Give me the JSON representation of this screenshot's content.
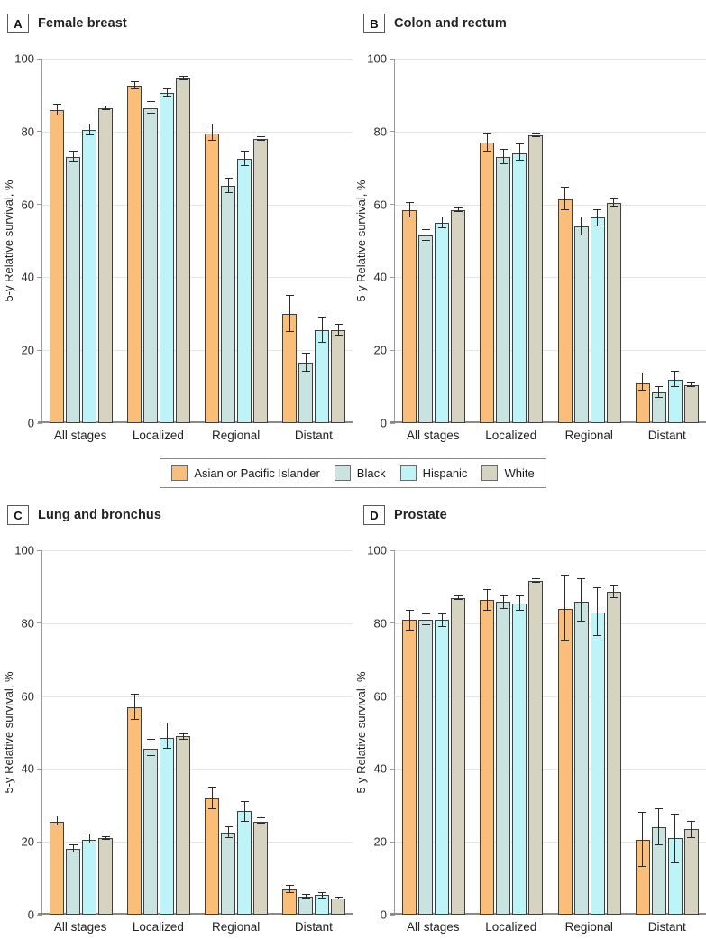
{
  "figure": {
    "y_axis_label": "5-y Relative survival, %",
    "y_ticks": [
      0,
      20,
      40,
      60,
      80,
      100
    ],
    "x_categories": [
      "All stages",
      "Localized",
      "Regional",
      "Distant"
    ],
    "colors": {
      "asian_or_pacific_islander": "#FBBE78",
      "black": "#C9E4E0",
      "hispanic": "#BDF4F7",
      "white": "#D6D4C0",
      "bar_border": "#3f3f3f",
      "error_bar": "#2a2a2a",
      "gridline": "#e4e4e4",
      "axis": "#9b9b9b"
    }
  },
  "legend": {
    "items": [
      {
        "label": "Asian or Pacific Islander",
        "color": "#FBBE78"
      },
      {
        "label": "Black",
        "color": "#C9E4E0"
      },
      {
        "label": "Hispanic",
        "color": "#BDF4F7"
      },
      {
        "label": "White",
        "color": "#D6D4C0"
      }
    ]
  },
  "chart_data": [
    {
      "type": "bar",
      "panel_label": "A",
      "title": "Female breast",
      "ylabel": "5-y Relative survival, %",
      "ylim": [
        0,
        100
      ],
      "grid": true,
      "categories": [
        "All stages",
        "Localized",
        "Regional",
        "Distant"
      ],
      "series": [
        {
          "name": "Asian or Pacific Islander",
          "color": "#FBBE78",
          "values": [
            86,
            92.5,
            79.5,
            30
          ],
          "err_lo": [
            84.5,
            91.5,
            77.5,
            25
          ],
          "err_hi": [
            87.5,
            93.5,
            82,
            35
          ]
        },
        {
          "name": "Black",
          "color": "#C9E4E0",
          "values": [
            73,
            86.5,
            65,
            16.5
          ],
          "err_lo": [
            71.5,
            85,
            63,
            14
          ],
          "err_hi": [
            74.5,
            88,
            67,
            19
          ]
        },
        {
          "name": "Hispanic",
          "color": "#BDF4F7",
          "values": [
            80.5,
            90.5,
            72.5,
            25.5
          ],
          "err_lo": [
            79,
            89.5,
            70.5,
            22
          ],
          "err_hi": [
            82,
            91.5,
            74.5,
            29
          ]
        },
        {
          "name": "White",
          "color": "#D6D4C0",
          "values": [
            86.5,
            94.5,
            78,
            25.5
          ],
          "err_lo": [
            86,
            94,
            77.5,
            24
          ],
          "err_hi": [
            87,
            95,
            78.5,
            27
          ]
        }
      ]
    },
    {
      "type": "bar",
      "panel_label": "B",
      "title": "Colon and rectum",
      "ylabel": "5-y Relative survival, %",
      "ylim": [
        0,
        100
      ],
      "grid": true,
      "categories": [
        "All stages",
        "Localized",
        "Regional",
        "Distant"
      ],
      "series": [
        {
          "name": "Asian or Pacific Islander",
          "color": "#FBBE78",
          "values": [
            58.5,
            77,
            61.5,
            11
          ],
          "err_lo": [
            56.5,
            74.5,
            58.5,
            9
          ],
          "err_hi": [
            60.5,
            79.5,
            64.5,
            13.5
          ]
        },
        {
          "name": "Black",
          "color": "#C9E4E0",
          "values": [
            51.5,
            73,
            54,
            8.5
          ],
          "err_lo": [
            50,
            71,
            51.5,
            7
          ],
          "err_hi": [
            53,
            75,
            56.5,
            10
          ]
        },
        {
          "name": "Hispanic",
          "color": "#BDF4F7",
          "values": [
            55,
            74,
            56.5,
            12
          ],
          "err_lo": [
            53.5,
            72,
            54,
            10
          ],
          "err_hi": [
            56.5,
            76.5,
            58.5,
            14
          ]
        },
        {
          "name": "White",
          "color": "#D6D4C0",
          "values": [
            58.5,
            79,
            60.5,
            10.5
          ],
          "err_lo": [
            58,
            78.5,
            59.5,
            10
          ],
          "err_hi": [
            59,
            79.5,
            61.5,
            11
          ]
        }
      ]
    },
    {
      "type": "bar",
      "panel_label": "C",
      "title": "Lung and bronchus",
      "ylabel": "5-y Relative survival, %",
      "ylim": [
        0,
        100
      ],
      "grid": true,
      "categories": [
        "All stages",
        "Localized",
        "Regional",
        "Distant"
      ],
      "series": [
        {
          "name": "Asian or Pacific Islander",
          "color": "#FBBE78",
          "values": [
            25.5,
            57,
            32,
            7
          ],
          "err_lo": [
            24.5,
            53.5,
            29,
            6
          ],
          "err_hi": [
            27,
            60.5,
            35,
            8
          ]
        },
        {
          "name": "Black",
          "color": "#C9E4E0",
          "values": [
            18,
            45.5,
            22.5,
            5
          ],
          "err_lo": [
            17,
            43.5,
            21,
            4.5
          ],
          "err_hi": [
            19,
            48,
            24,
            5.5
          ]
        },
        {
          "name": "Hispanic",
          "color": "#BDF4F7",
          "values": [
            20.5,
            48.5,
            28.5,
            5.5
          ],
          "err_lo": [
            19.5,
            45.5,
            25.5,
            4.5
          ],
          "err_hi": [
            22,
            52.5,
            31,
            6
          ]
        },
        {
          "name": "White",
          "color": "#D6D4C0",
          "values": [
            21,
            49,
            25.5,
            4.5
          ],
          "err_lo": [
            20.5,
            48,
            25,
            4.3
          ],
          "err_hi": [
            21.3,
            49.5,
            26.5,
            4.7
          ]
        }
      ]
    },
    {
      "type": "bar",
      "panel_label": "D",
      "title": "Prostate",
      "ylabel": "5-y Relative survival, %",
      "ylim": [
        0,
        100
      ],
      "grid": true,
      "categories": [
        "All stages",
        "Localized",
        "Regional",
        "Distant"
      ],
      "series": [
        {
          "name": "Asian or Pacific Islander",
          "color": "#FBBE78",
          "values": [
            81,
            86.5,
            84,
            20.5
          ],
          "err_lo": [
            78,
            83.5,
            75,
            13
          ],
          "err_hi": [
            83.5,
            89,
            93,
            28
          ]
        },
        {
          "name": "Black",
          "color": "#C9E4E0",
          "values": [
            81,
            86,
            86,
            24
          ],
          "err_lo": [
            79.5,
            84,
            80.5,
            19
          ],
          "err_hi": [
            82.5,
            87.5,
            92,
            29
          ]
        },
        {
          "name": "Hispanic",
          "color": "#BDF4F7",
          "values": [
            81,
            85.5,
            83,
            21
          ],
          "err_lo": [
            79,
            83.5,
            76.5,
            14
          ],
          "err_hi": [
            82.5,
            87.5,
            89.5,
            27.5
          ]
        },
        {
          "name": "White",
          "color": "#D6D4C0",
          "values": [
            87,
            91.5,
            88.5,
            23.5
          ],
          "err_lo": [
            86.5,
            91,
            87,
            21
          ],
          "err_hi": [
            87.5,
            92,
            90,
            25.5
          ]
        }
      ]
    }
  ]
}
